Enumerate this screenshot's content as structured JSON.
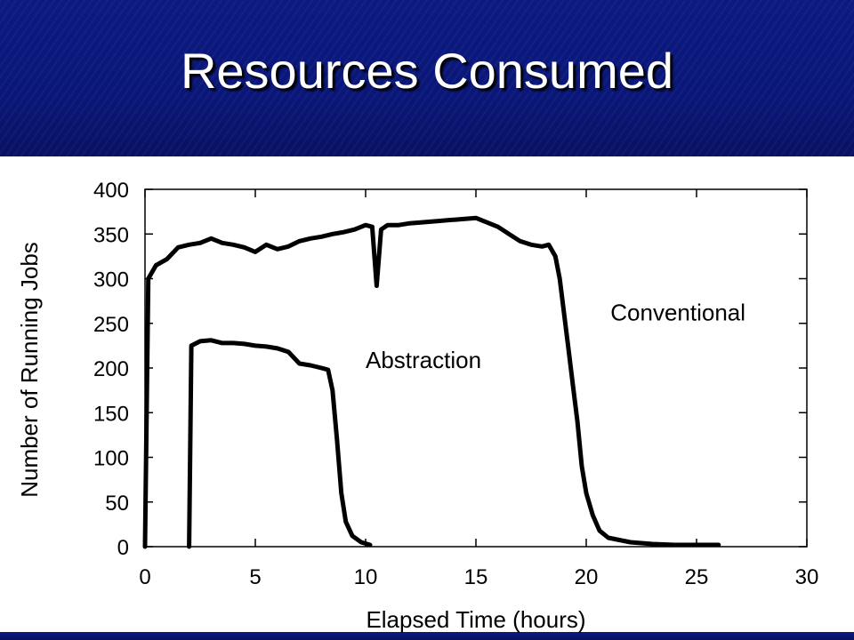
{
  "slide": {
    "title": "Resources Consumed"
  },
  "colors": {
    "header_background": "#0a177a",
    "title_text": "#ffffff",
    "series_line": "#000000"
  },
  "chart_data": {
    "type": "line",
    "title": "",
    "xlabel": "Elapsed Time (hours)",
    "ylabel": "Number of Running Jobs",
    "xlim": [
      0,
      30
    ],
    "ylim": [
      0,
      400
    ],
    "x_ticks": [
      0,
      5,
      10,
      15,
      20,
      25,
      30
    ],
    "y_ticks": [
      0,
      50,
      100,
      150,
      200,
      250,
      300,
      350,
      400
    ],
    "grid": false,
    "legend": "none",
    "annotations": [
      {
        "text": "Conventional",
        "x": 21.1,
        "y": 253
      },
      {
        "text": "Abstraction",
        "x": 10.0,
        "y": 200
      }
    ],
    "series": [
      {
        "name": "Conventional",
        "points": [
          [
            0,
            0
          ],
          [
            0.15,
            300
          ],
          [
            0.5,
            315
          ],
          [
            1,
            322
          ],
          [
            1.5,
            335
          ],
          [
            2,
            338
          ],
          [
            2.5,
            340
          ],
          [
            3,
            345
          ],
          [
            3.5,
            340
          ],
          [
            4,
            338
          ],
          [
            4.5,
            335
          ],
          [
            5,
            330
          ],
          [
            5.5,
            338
          ],
          [
            6,
            333
          ],
          [
            6.5,
            336
          ],
          [
            7,
            342
          ],
          [
            7.5,
            345
          ],
          [
            8,
            347
          ],
          [
            8.5,
            350
          ],
          [
            9,
            352
          ],
          [
            9.5,
            355
          ],
          [
            10,
            360
          ],
          [
            10.3,
            358
          ],
          [
            10.5,
            292
          ],
          [
            10.7,
            355
          ],
          [
            11,
            360
          ],
          [
            11.5,
            360
          ],
          [
            12,
            362
          ],
          [
            13,
            364
          ],
          [
            14,
            366
          ],
          [
            15,
            368
          ],
          [
            15.5,
            363
          ],
          [
            16,
            358
          ],
          [
            16.5,
            350
          ],
          [
            17,
            342
          ],
          [
            17.5,
            338
          ],
          [
            18,
            336
          ],
          [
            18.3,
            338
          ],
          [
            18.6,
            325
          ],
          [
            18.8,
            300
          ],
          [
            19,
            260
          ],
          [
            19.2,
            220
          ],
          [
            19.4,
            180
          ],
          [
            19.6,
            140
          ],
          [
            19.8,
            90
          ],
          [
            20,
            60
          ],
          [
            20.3,
            35
          ],
          [
            20.6,
            18
          ],
          [
            21,
            10
          ],
          [
            22,
            5
          ],
          [
            23,
            3
          ],
          [
            24,
            2
          ],
          [
            25,
            2
          ],
          [
            26,
            2
          ]
        ]
      },
      {
        "name": "Abstraction",
        "points": [
          [
            2,
            0
          ],
          [
            2.1,
            225
          ],
          [
            2.5,
            230
          ],
          [
            3,
            231
          ],
          [
            3.5,
            228
          ],
          [
            4,
            228
          ],
          [
            4.5,
            227
          ],
          [
            5,
            225
          ],
          [
            5.5,
            224
          ],
          [
            6,
            222
          ],
          [
            6.5,
            218
          ],
          [
            7,
            205
          ],
          [
            7.5,
            203
          ],
          [
            8,
            200
          ],
          [
            8.3,
            198
          ],
          [
            8.5,
            175
          ],
          [
            8.7,
            120
          ],
          [
            8.9,
            60
          ],
          [
            9.1,
            28
          ],
          [
            9.4,
            12
          ],
          [
            9.8,
            5
          ],
          [
            10.2,
            2
          ]
        ]
      }
    ]
  }
}
